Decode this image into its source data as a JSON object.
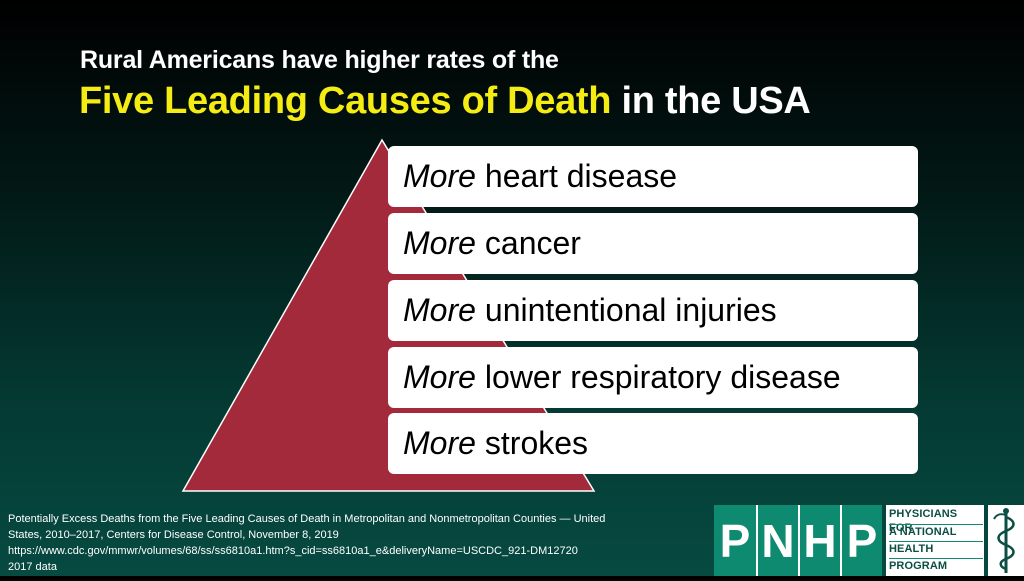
{
  "title": {
    "line1": "Rural Americans have higher rates of the",
    "highlight": "Five Leading Causes of Death",
    "rest": "in the USA"
  },
  "causes": [
    {
      "prefix": "More",
      "label": "heart disease"
    },
    {
      "prefix": "More",
      "label": "cancer"
    },
    {
      "prefix": "More",
      "label": "unintentional injuries"
    },
    {
      "prefix": "More",
      "label": "lower respiratory disease"
    },
    {
      "prefix": "More",
      "label": "strokes"
    }
  ],
  "citation": {
    "line1": "Potentially Excess Deaths from the Five Leading Causes of Death in Metropolitan and Nonmetropolitan Counties — United",
    "line2": "States, 2010–2017, Centers for Disease Control, November 8, 2019",
    "line3": "https://www.cdc.gov/mmwr/volumes/68/ss/ss6810a1.htm?s_cid=ss6810a1_e&deliveryName=USCDC_921-DM12720",
    "line4": "2017 data"
  },
  "logo": {
    "letters": [
      "P",
      "N",
      "H",
      "P"
    ],
    "words": [
      "PHYSICIANS FOR",
      "A NATIONAL",
      "HEALTH",
      "PROGRAM"
    ],
    "emblem_icon": "caduceus-icon"
  },
  "colors": {
    "highlight": "#f5ec13",
    "pyramid": "#a32a3a",
    "logo_green": "#0e8a70"
  }
}
